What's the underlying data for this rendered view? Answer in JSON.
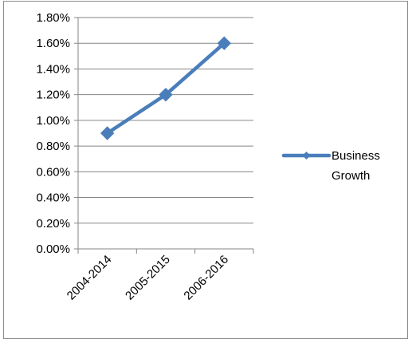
{
  "chart_data": {
    "type": "line",
    "title": "",
    "xlabel": "",
    "ylabel": "",
    "categories": [
      "2004-2014",
      "2005-2015",
      "2006-2016"
    ],
    "series": [
      {
        "name": "Business Growth",
        "values": [
          0.009,
          0.012,
          0.016
        ],
        "color": "#4a7ebb"
      }
    ],
    "ylim": [
      0,
      0.018
    ],
    "y_ticks": [
      "0.00%",
      "0.20%",
      "0.40%",
      "0.60%",
      "0.80%",
      "1.00%",
      "1.20%",
      "1.40%",
      "1.60%",
      "1.80%"
    ],
    "y_tick_step": 0.002,
    "grid": true,
    "legend_position": "right",
    "legend_lines": [
      "Business",
      "Growth"
    ],
    "marker": "diamond",
    "colors": {
      "grid": "#868686",
      "axis": "#868686",
      "frame": "#8c8c8c"
    }
  }
}
